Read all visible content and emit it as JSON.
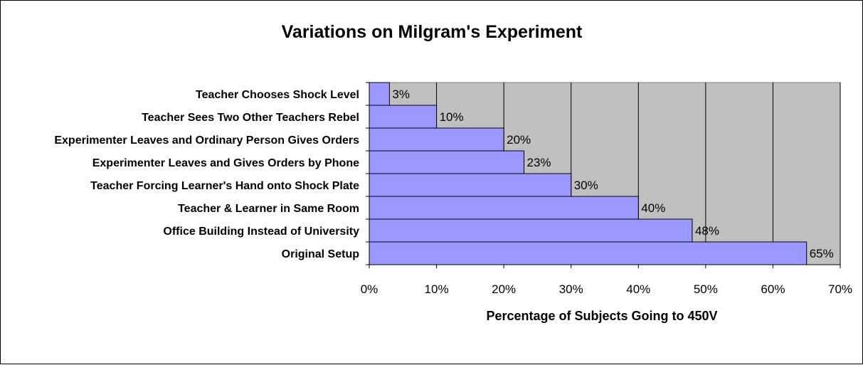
{
  "chart_data": {
    "type": "bar",
    "orientation": "horizontal",
    "title": "Variations on Milgram's Experiment",
    "xlabel": "Percentage of Subjects Going to 450V",
    "ylabel": "",
    "categories": [
      "Teacher Chooses Shock Level",
      "Teacher Sees Two Other Teachers Rebel",
      "Experimenter Leaves and Ordinary Person Gives Orders",
      "Experimenter Leaves and Gives Orders by Phone",
      "Teacher Forcing Learner's Hand onto Shock Plate",
      "Teacher & Learner in Same Room",
      "Office Building Instead of University",
      "Original Setup"
    ],
    "values": [
      3,
      10,
      20,
      23,
      30,
      40,
      48,
      65
    ],
    "data_labels": [
      "3%",
      "10%",
      "20%",
      "23%",
      "30%",
      "40%",
      "48%",
      "65%"
    ],
    "xlim": [
      0,
      70
    ],
    "xticks": [
      0,
      10,
      20,
      30,
      40,
      50,
      60,
      70
    ],
    "xtick_labels": [
      "0%",
      "10%",
      "20%",
      "30%",
      "40%",
      "50%",
      "60%",
      "70%"
    ],
    "grid": true,
    "legend": "none",
    "colors": {
      "bar_fill": "#9999ff",
      "bar_stroke": "#000000",
      "plot_background": "#c0c0c0",
      "gridline": "#000000"
    }
  }
}
